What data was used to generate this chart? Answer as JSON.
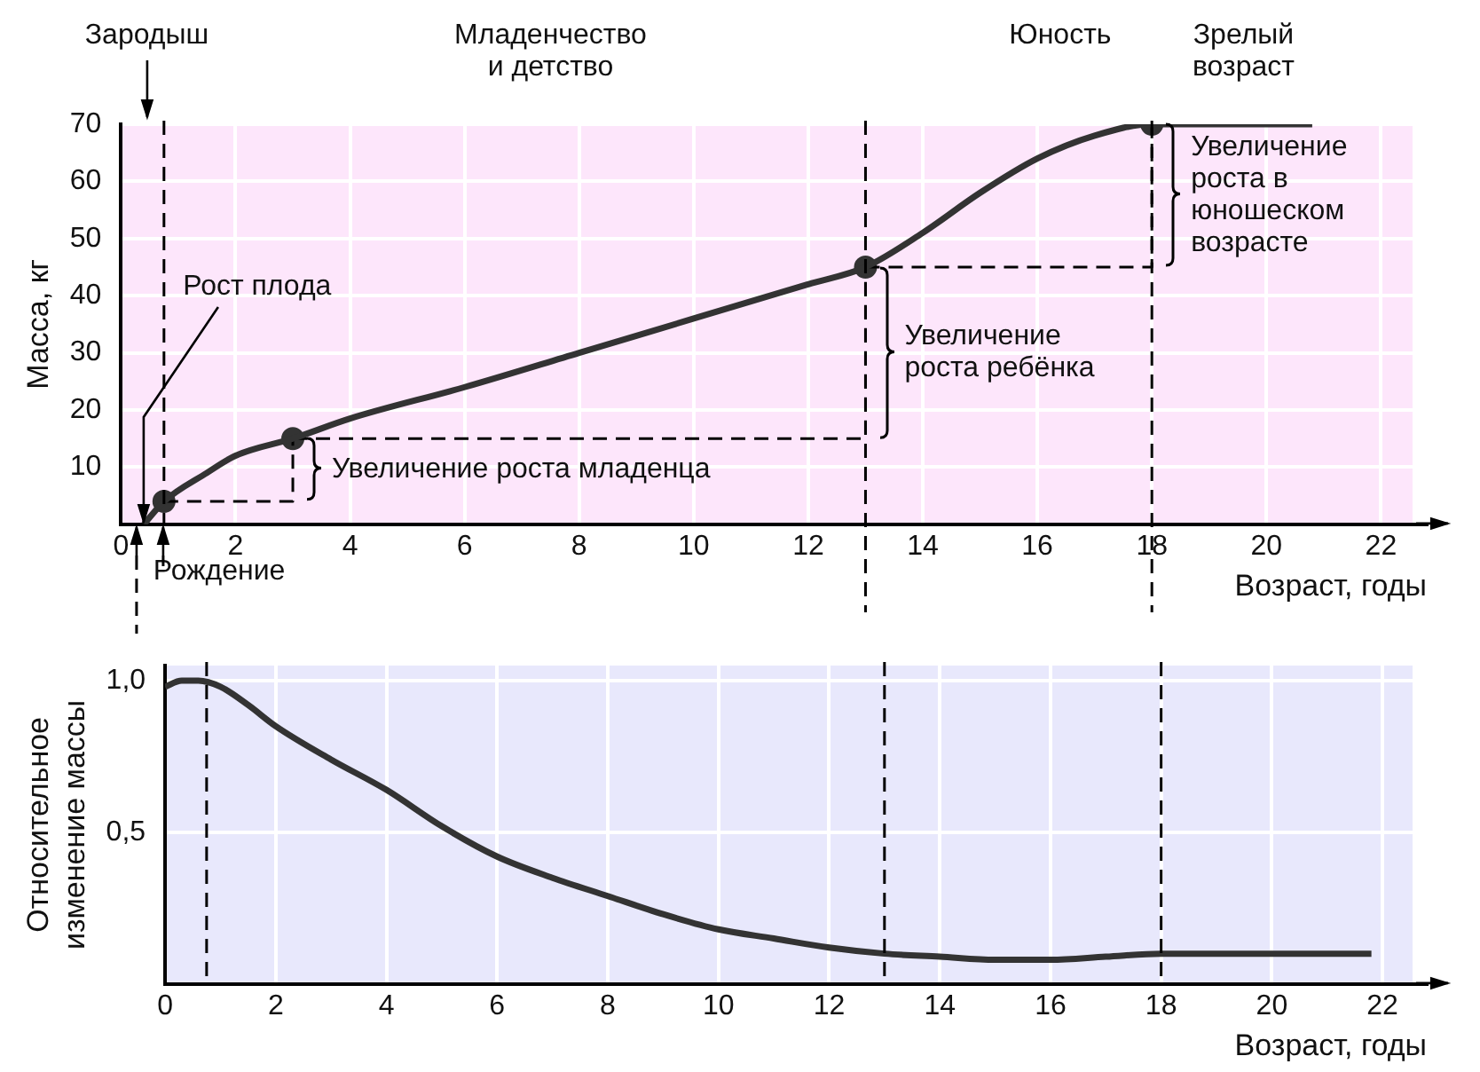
{
  "chart_data": [
    {
      "type": "line",
      "ylabel": "Масса, кг",
      "xlabel": "Возраст, годы",
      "annotations": [
        "Зародыш",
        "Младенчество и детство",
        "Юность",
        "Зрелый возраст",
        {
          "text": "Рост плода",
          "x": 0.4,
          "y": 0
        },
        "Рождение",
        {
          "text": "Увеличение роста младенца",
          "x": 3,
          "y": 9.5
        },
        {
          "text": "Увеличение роста ребёнка",
          "x": 13,
          "y": 30
        },
        {
          "text": "Увеличение роста в юношеском возрасте",
          "x": 18,
          "y": 57.5
        }
      ],
      "series": [
        {
          "color": "#333333",
          "marker": "none",
          "x": [
            0.4,
            0.75,
            1.5,
            2,
            3,
            4,
            6,
            8,
            10,
            12,
            13,
            14,
            15,
            16,
            17,
            18,
            19,
            20.8
          ],
          "values": [
            0,
            4,
            9,
            12,
            15,
            18.5,
            24,
            30,
            36,
            42,
            45,
            51,
            58,
            64,
            68,
            70,
            70,
            70
          ]
        },
        {
          "color": "#000000",
          "marker": "none",
          "line_style": "dashed",
          "x": [
            0.75,
            3,
            3
          ],
          "values": [
            4,
            4,
            15
          ]
        },
        {
          "color": "#000000",
          "marker": "none",
          "line_style": "dashed",
          "x": [
            3,
            13,
            13
          ],
          "values": [
            15,
            15,
            45
          ]
        },
        {
          "color": "#000000",
          "marker": "none",
          "line_style": "dashed",
          "x": [
            13,
            18,
            18
          ],
          "values": [
            45,
            45,
            70
          ]
        },
        {
          "type": "scatter",
          "color": "#333333",
          "marker": "circle",
          "x": [
            0.75,
            3,
            13,
            18
          ],
          "values": [
            4,
            15,
            45,
            70
          ]
        }
      ],
      "xlim": [
        0,
        22.8
      ],
      "xticks": [
        0,
        2,
        4,
        6,
        8,
        10,
        12,
        14,
        16,
        18,
        20,
        22
      ],
      "ylim": [
        0,
        70
      ],
      "yticks": [
        {
          "value": 0,
          "label": null
        },
        10,
        20,
        30,
        40,
        50,
        60,
        70
      ],
      "ref_lines": [
        {
          "axis": "x",
          "value": 0.75,
          "line_style": "dashed",
          "color": "#000000"
        },
        {
          "axis": "x",
          "value": 13,
          "line_style": "dashed",
          "color": "#000000"
        },
        {
          "axis": "x",
          "value": 18,
          "line_style": "dashed",
          "color": "#000000"
        }
      ],
      "grid": true,
      "legend": false
    },
    {
      "type": "line",
      "ylabel": "Относительное изменение массы",
      "xlabel": "Возраст, годы",
      "series": [
        {
          "color": "#333333",
          "marker": "none",
          "x": [
            0,
            0.3,
            0.6,
            1,
            1.5,
            2,
            3,
            4,
            5,
            6,
            7,
            8,
            9,
            10,
            11,
            12,
            13,
            14,
            15,
            16,
            17,
            18,
            19,
            20,
            21.8
          ],
          "values": [
            0.98,
            1.0,
            1.0,
            0.98,
            0.92,
            0.85,
            0.74,
            0.64,
            0.52,
            0.42,
            0.35,
            0.29,
            0.23,
            0.18,
            0.15,
            0.12,
            0.1,
            0.09,
            0.08,
            0.08,
            0.09,
            0.1,
            0.1,
            0.1,
            0.1
          ]
        }
      ],
      "xlim": [
        0,
        22.8
      ],
      "xticks": [
        0,
        2,
        4,
        6,
        8,
        10,
        12,
        14,
        16,
        18,
        20,
        22
      ],
      "ylim": [
        0,
        1.05
      ],
      "yticks": [
        {
          "value": 0.5,
          "label": "0,5"
        },
        {
          "value": 1,
          "label": "1,0"
        }
      ],
      "ref_lines": [
        {
          "axis": "x",
          "value": 0.75,
          "line_style": "dashed",
          "color": "#000000"
        },
        {
          "axis": "x",
          "value": 13,
          "line_style": "dashed",
          "color": "#000000"
        },
        {
          "axis": "x",
          "value": 18,
          "line_style": "dashed",
          "color": "#000000"
        }
      ],
      "grid": true,
      "legend": false
    }
  ]
}
